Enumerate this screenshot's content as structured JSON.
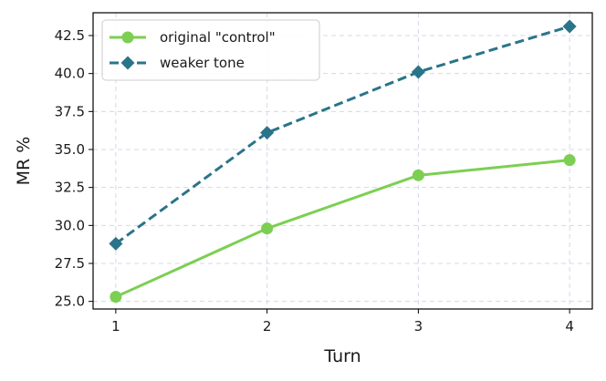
{
  "chart_data": {
    "type": "line",
    "title": "",
    "xlabel": "Turn",
    "ylabel": "MR %",
    "x": [
      1,
      2,
      3,
      4
    ],
    "xticks": [
      "1",
      "2",
      "3",
      "4"
    ],
    "xlim": [
      0.85,
      4.15
    ],
    "ylim": [
      24.5,
      44.0
    ],
    "yticks": [
      "25.0",
      "27.5",
      "30.0",
      "32.5",
      "35.0",
      "37.5",
      "40.0",
      "42.5"
    ],
    "grid": true,
    "legend": "top-left",
    "series": [
      {
        "name": "original \"control\"",
        "values": [
          25.3,
          29.8,
          33.3,
          34.3
        ],
        "color": "#7ccf52",
        "linestyle": "solid",
        "marker": "circle"
      },
      {
        "name": "weaker tone",
        "values": [
          28.8,
          36.1,
          40.1,
          43.1
        ],
        "color": "#2a7489",
        "linestyle": "dashed",
        "marker": "diamond"
      }
    ]
  }
}
